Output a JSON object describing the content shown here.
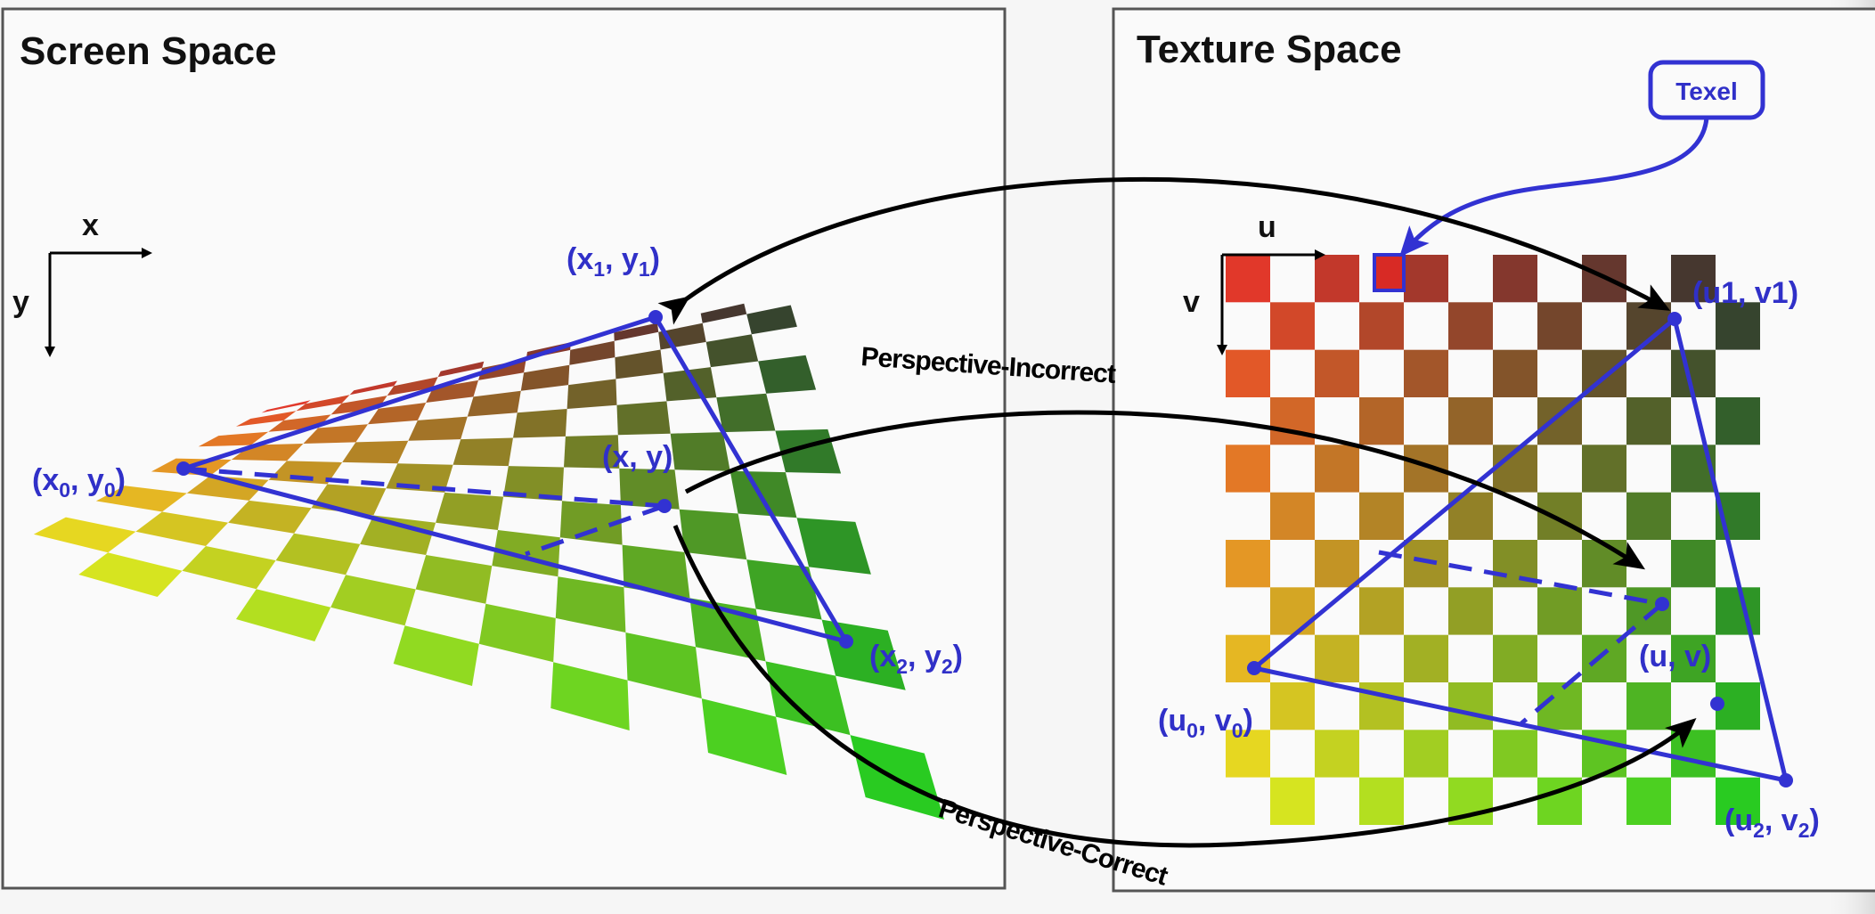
{
  "screen_panel": {
    "title": "Screen Space",
    "axis_x": "x",
    "axis_y": "y",
    "labels": {
      "p0": {
        "main": "(x",
        "s1": "0",
        "mid": ", y",
        "s2": "0",
        "end": ")"
      },
      "p1": {
        "main": "(x",
        "s1": "1",
        "mid": ", y",
        "s2": "1",
        "end": ")"
      },
      "p2": {
        "main": "(x",
        "s1": "2",
        "mid": ", y",
        "s2": "2",
        "end": ")"
      },
      "p": "(x, y)"
    }
  },
  "texture_panel": {
    "title": "Texture Space",
    "axis_u": "u",
    "axis_v": "v",
    "texel_label": "Texel",
    "labels": {
      "p0": {
        "main": "(u",
        "s1": "0",
        "mid": ", v",
        "s2": "0",
        "end": ")"
      },
      "p1": "(u1, v1)",
      "p2": {
        "main": "(u",
        "s1": "2",
        "mid": ", v",
        "s2": "2",
        "end": ")"
      },
      "p": "(u, v)"
    }
  },
  "arcs": {
    "incorrect": "Perspective-Incorrect",
    "correct": "Perspective-Correct"
  },
  "colors": {
    "triangle": "#3232d2",
    "arrow": "#000000",
    "checker_top_left": "#e8302a",
    "checker_top_right": "#303030",
    "checker_bottom_left": "#f0f020",
    "checker_bottom_right": "#20d020"
  }
}
